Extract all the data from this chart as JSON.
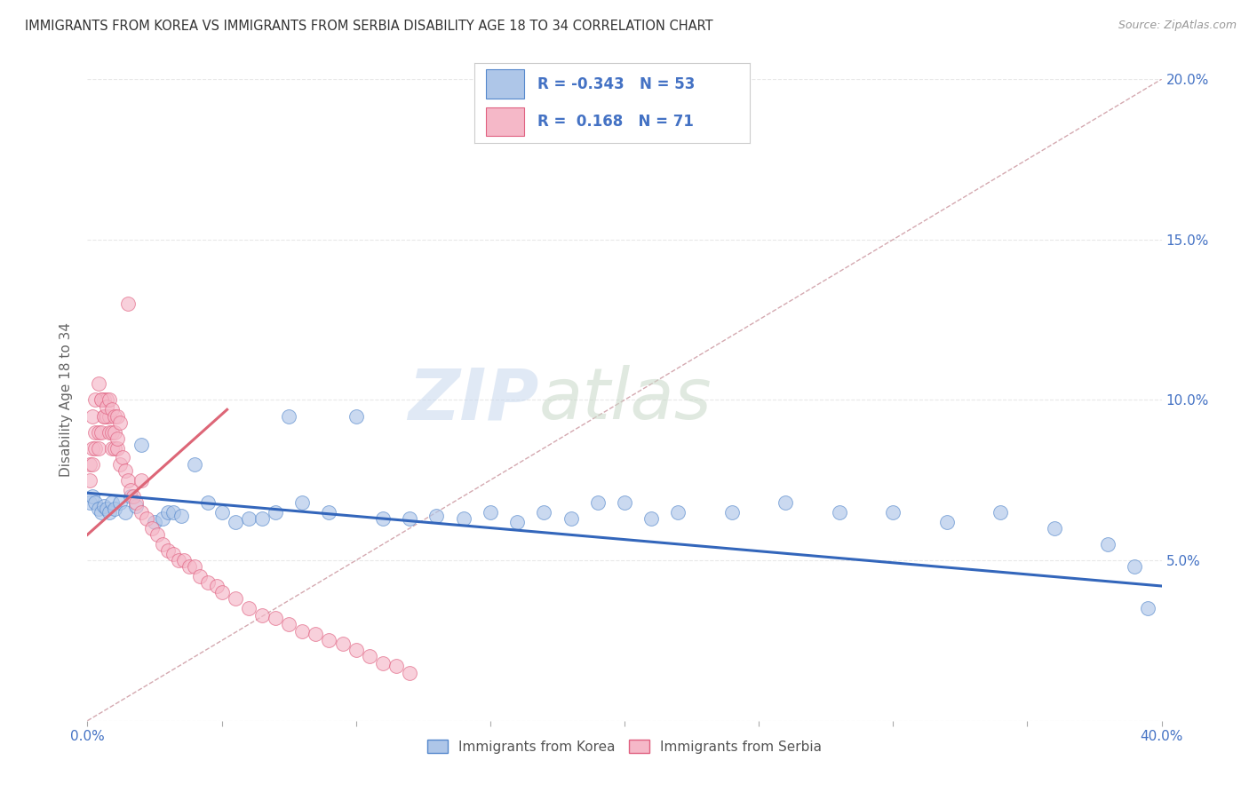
{
  "title": "IMMIGRANTS FROM KOREA VS IMMIGRANTS FROM SERBIA DISABILITY AGE 18 TO 34 CORRELATION CHART",
  "source": "Source: ZipAtlas.com",
  "ylabel": "Disability Age 18 to 34",
  "watermark_zip": "ZIP",
  "watermark_atlas": "atlas",
  "korea_R": -0.343,
  "korea_N": 53,
  "serbia_R": 0.168,
  "serbia_N": 71,
  "korea_color": "#aec6e8",
  "serbia_color": "#f5b8c8",
  "korea_edge_color": "#5588cc",
  "serbia_edge_color": "#e06080",
  "korea_line_color": "#3366bb",
  "serbia_line_color": "#dd6677",
  "ref_line_color": "#d0a0a8",
  "xlim": [
    0.0,
    0.4
  ],
  "ylim": [
    0.0,
    0.2
  ],
  "korea_x": [
    0.001,
    0.002,
    0.003,
    0.004,
    0.005,
    0.006,
    0.007,
    0.008,
    0.009,
    0.01,
    0.012,
    0.014,
    0.016,
    0.018,
    0.02,
    0.025,
    0.028,
    0.03,
    0.032,
    0.035,
    0.04,
    0.045,
    0.05,
    0.055,
    0.06,
    0.065,
    0.07,
    0.075,
    0.08,
    0.09,
    0.1,
    0.11,
    0.12,
    0.13,
    0.14,
    0.15,
    0.16,
    0.17,
    0.18,
    0.19,
    0.2,
    0.21,
    0.22,
    0.24,
    0.26,
    0.28,
    0.3,
    0.32,
    0.34,
    0.36,
    0.38,
    0.39,
    0.395
  ],
  "korea_y": [
    0.068,
    0.07,
    0.068,
    0.066,
    0.065,
    0.067,
    0.066,
    0.065,
    0.068,
    0.066,
    0.068,
    0.065,
    0.07,
    0.067,
    0.086,
    0.062,
    0.063,
    0.065,
    0.065,
    0.064,
    0.08,
    0.068,
    0.065,
    0.062,
    0.063,
    0.063,
    0.065,
    0.095,
    0.068,
    0.065,
    0.095,
    0.063,
    0.063,
    0.064,
    0.063,
    0.065,
    0.062,
    0.065,
    0.063,
    0.068,
    0.068,
    0.063,
    0.065,
    0.065,
    0.068,
    0.065,
    0.065,
    0.062,
    0.065,
    0.06,
    0.055,
    0.048,
    0.035
  ],
  "serbia_x": [
    0.001,
    0.001,
    0.002,
    0.002,
    0.003,
    0.003,
    0.004,
    0.004,
    0.005,
    0.005,
    0.006,
    0.006,
    0.007,
    0.007,
    0.008,
    0.008,
    0.009,
    0.009,
    0.01,
    0.01,
    0.011,
    0.011,
    0.012,
    0.013,
    0.014,
    0.015,
    0.016,
    0.017,
    0.018,
    0.02,
    0.022,
    0.024,
    0.026,
    0.028,
    0.03,
    0.032,
    0.034,
    0.036,
    0.038,
    0.04,
    0.042,
    0.045,
    0.048,
    0.05,
    0.055,
    0.06,
    0.065,
    0.07,
    0.075,
    0.08,
    0.085,
    0.09,
    0.095,
    0.1,
    0.105,
    0.11,
    0.115,
    0.12,
    0.002,
    0.003,
    0.004,
    0.005,
    0.006,
    0.007,
    0.008,
    0.009,
    0.01,
    0.011,
    0.012,
    0.015,
    0.02
  ],
  "serbia_y": [
    0.075,
    0.08,
    0.08,
    0.085,
    0.085,
    0.09,
    0.085,
    0.09,
    0.09,
    0.1,
    0.095,
    0.1,
    0.095,
    0.1,
    0.09,
    0.095,
    0.085,
    0.09,
    0.085,
    0.09,
    0.085,
    0.088,
    0.08,
    0.082,
    0.078,
    0.075,
    0.072,
    0.07,
    0.068,
    0.065,
    0.063,
    0.06,
    0.058,
    0.055,
    0.053,
    0.052,
    0.05,
    0.05,
    0.048,
    0.048,
    0.045,
    0.043,
    0.042,
    0.04,
    0.038,
    0.035,
    0.033,
    0.032,
    0.03,
    0.028,
    0.027,
    0.025,
    0.024,
    0.022,
    0.02,
    0.018,
    0.017,
    0.015,
    0.095,
    0.1,
    0.105,
    0.1,
    0.095,
    0.098,
    0.1,
    0.097,
    0.095,
    0.095,
    0.093,
    0.13,
    0.075
  ],
  "title_color": "#333333",
  "axis_label_color": "#4472c4",
  "ylabel_color": "#666666",
  "grid_color": "#e8e8e8",
  "background_color": "#ffffff"
}
